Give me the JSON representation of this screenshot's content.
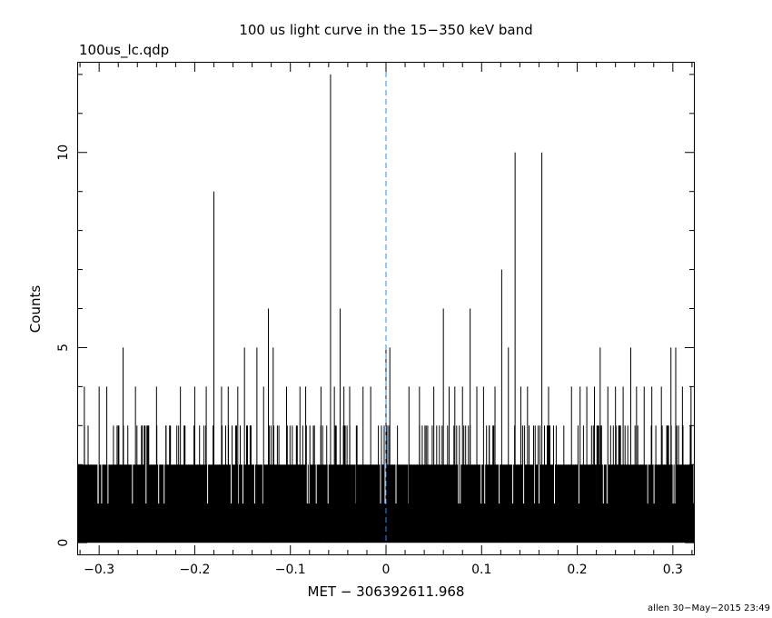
{
  "chart_data": {
    "type": "bar",
    "title": "100 us light curve in the 15−350 keV band",
    "subtitle": "100us_lc.qdp",
    "xlabel": "MET − 306392611.968",
    "ylabel": "Counts",
    "footer": "allen 30−May−2015 23:49",
    "xlim": [
      -0.322,
      0.322
    ],
    "ylim": [
      -0.3,
      12.3
    ],
    "x_ticks": [
      -0.3,
      -0.2,
      -0.1,
      0,
      0.1,
      0.2,
      0.3
    ],
    "x_tick_labels": [
      "−0.3",
      "−0.2",
      "−0.1",
      "0",
      "0.1",
      "0.2",
      "0.3"
    ],
    "y_ticks": [
      0,
      5,
      10
    ],
    "y_tick_labels": [
      "0",
      "5",
      "10"
    ],
    "bin_width": 0.0001,
    "baseline_counts": "0-2 counts per bin (dense)",
    "marker_line": {
      "x": 0,
      "style": "dashed",
      "color": "#1e90ff"
    },
    "series": [
      {
        "values_description": "peak counts of prominent spikes",
        "x": [
          -0.3155,
          -0.3,
          -0.292,
          -0.28,
          -0.275,
          -0.27,
          -0.262,
          -0.255,
          -0.24,
          -0.23,
          -0.215,
          -0.2,
          -0.195,
          -0.188,
          -0.18,
          -0.172,
          -0.165,
          -0.155,
          -0.148,
          -0.142,
          -0.135,
          -0.128,
          -0.123,
          -0.118,
          -0.112,
          -0.104,
          -0.098,
          -0.09,
          -0.084,
          -0.076,
          -0.068,
          -0.062,
          -0.058,
          -0.054,
          -0.048,
          -0.044,
          -0.038,
          -0.031,
          -0.024,
          -0.016,
          -0.008,
          0.0,
          0.004,
          0.012,
          0.024,
          0.035,
          0.042,
          0.05,
          0.06,
          0.066,
          0.072,
          0.08,
          0.088,
          0.095,
          0.102,
          0.108,
          0.114,
          0.121,
          0.128,
          0.135,
          0.141,
          0.148,
          0.156,
          0.163,
          0.17,
          0.178,
          0.186,
          0.194,
          0.203,
          0.21,
          0.218,
          0.224,
          0.232,
          0.24,
          0.248,
          0.256,
          0.262,
          0.27,
          0.278,
          0.288,
          0.298,
          0.303,
          0.31,
          0.319
        ],
        "y": [
          4,
          4,
          4,
          3,
          5,
          3,
          4,
          3,
          4,
          3,
          4,
          4,
          3,
          4,
          9,
          4,
          4,
          4,
          5,
          3,
          5,
          4,
          6,
          5,
          3,
          4,
          3,
          4,
          4,
          3,
          4,
          3,
          12,
          4,
          6,
          4,
          4,
          3,
          4,
          4,
          3,
          5,
          5,
          3,
          4,
          4,
          3,
          4,
          6,
          4,
          4,
          4,
          6,
          4,
          4,
          3,
          4,
          7,
          5,
          10,
          4,
          4,
          3,
          10,
          4,
          3,
          3,
          4,
          4,
          4,
          4,
          5,
          4,
          4,
          4,
          5,
          4,
          4,
          4,
          4,
          5,
          5,
          4,
          4
        ]
      }
    ]
  }
}
